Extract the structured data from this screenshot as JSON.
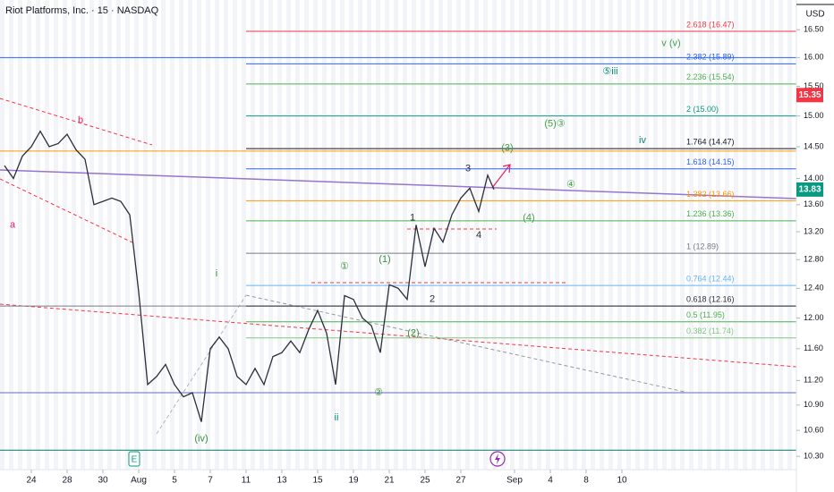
{
  "chart_data": {
    "type": "line",
    "title": "Riot Platforms, Inc. · 15 · NASDAQ",
    "currency": "USD",
    "log_scale": true,
    "grid": false,
    "color": "#2a2e39",
    "x": [
      -1.5,
      -1,
      -0.5,
      0,
      0.5,
      1,
      1.5,
      2,
      2.5,
      3,
      3.5,
      4,
      4.5,
      5,
      5.5,
      6,
      6.5,
      7,
      7.5,
      8,
      8.5,
      9,
      9.5,
      10,
      10.5,
      11,
      11.5,
      12,
      12.5,
      13,
      13.5,
      14,
      14.5,
      15,
      15.5,
      16,
      16.5,
      17,
      17.5,
      18,
      18.5,
      19,
      19.5,
      20,
      20.5,
      21,
      21.5,
      22,
      22.5,
      23,
      23.5,
      24,
      24.5,
      25,
      25.5,
      25.85
    ],
    "values": [
      14.2,
      14.0,
      14.35,
      14.5,
      14.75,
      14.5,
      14.55,
      14.7,
      14.45,
      14.3,
      13.6,
      13.65,
      13.7,
      13.65,
      13.45,
      12.35,
      11.15,
      11.25,
      11.4,
      11.15,
      11.0,
      11.05,
      10.7,
      11.6,
      11.75,
      11.6,
      11.25,
      11.15,
      11.35,
      11.15,
      11.5,
      11.55,
      11.7,
      11.55,
      11.85,
      12.1,
      11.8,
      11.15,
      12.3,
      12.25,
      12.0,
      11.9,
      11.55,
      12.45,
      12.4,
      12.25,
      13.3,
      12.7,
      13.25,
      13.05,
      13.45,
      13.7,
      13.85,
      13.5,
      14.05,
      13.83
    ],
    "xlim": [
      -1.75,
      42.75
    ],
    "xticks": [
      {
        "value": 0,
        "label": "24"
      },
      {
        "value": 2,
        "label": "28"
      },
      {
        "value": 4,
        "label": "30"
      },
      {
        "value": 6,
        "label": "Aug"
      },
      {
        "value": 8,
        "label": "5"
      },
      {
        "value": 10,
        "label": "7"
      },
      {
        "value": 12,
        "label": "11"
      },
      {
        "value": 14,
        "label": "13"
      },
      {
        "value": 16,
        "label": "15"
      },
      {
        "value": 18,
        "label": "19"
      },
      {
        "value": 20,
        "label": "21"
      },
      {
        "value": 22,
        "label": "25"
      },
      {
        "value": 24,
        "label": "27"
      },
      {
        "value": 27,
        "label": "Sep"
      },
      {
        "value": 29,
        "label": "4"
      },
      {
        "value": 31,
        "label": "8"
      },
      {
        "value": 33,
        "label": "10"
      }
    ],
    "ylim": [
      10.15,
      17.05
    ],
    "yticks": [
      {
        "value": 16.5,
        "label": "16.50"
      },
      {
        "value": 16,
        "label": "16.00"
      },
      {
        "value": 15.5,
        "label": "15.50"
      },
      {
        "value": 15,
        "label": "15.00"
      },
      {
        "value": 14.5,
        "label": "14.50"
      },
      {
        "value": 14,
        "label": "14.00"
      },
      {
        "value": 13.6,
        "label": "13.60"
      },
      {
        "value": 13.2,
        "label": "13.20"
      },
      {
        "value": 12.8,
        "label": "12.80"
      },
      {
        "value": 12.4,
        "label": "12.40"
      },
      {
        "value": 12,
        "label": "12.00"
      },
      {
        "value": 11.6,
        "label": "11.60"
      },
      {
        "value": 11.2,
        "label": "11.20"
      },
      {
        "value": 10.9,
        "label": "10.90"
      },
      {
        "value": 10.6,
        "label": "10.60"
      },
      {
        "value": 10.3,
        "label": "10.30"
      }
    ],
    "fib_levels": [
      {
        "label": "2.618 (16.47)",
        "value": 16.47,
        "color": "#f23645"
      },
      {
        "label": "2.382 (15.89)",
        "value": 15.89,
        "color": "#2962ff"
      },
      {
        "label": "2.236 (15.54)",
        "value": 15.54,
        "color": "#4caf50"
      },
      {
        "label": "2 (15.00)",
        "value": 15.0,
        "color": "#089981"
      },
      {
        "label": "1.764 (14.47)",
        "value": 14.47,
        "color": "#131722"
      },
      {
        "label": "1.618 (14.15)",
        "value": 14.15,
        "color": "#2962ff"
      },
      {
        "label": "1.382 (13.66)",
        "value": 13.66,
        "color": "#ff9800"
      },
      {
        "label": "1.236 (13.36)",
        "value": 13.36,
        "color": "#4caf50"
      },
      {
        "label": "1 (12.89)",
        "value": 12.89,
        "color": "#787b86"
      },
      {
        "label": "0.764 (12.44)",
        "value": 12.44,
        "color": "#64b5f6"
      },
      {
        "label": "0.618 (12.16)",
        "value": 12.16,
        "color": "#2a2e39"
      },
      {
        "label": "0.5 (11.95)",
        "value": 11.95,
        "color": "#4caf50"
      },
      {
        "label": "0.382 (11.74)",
        "value": 11.74,
        "color": "#81c784"
      }
    ],
    "hlines": [
      {
        "value": 16.0,
        "color": "#2962ff"
      },
      {
        "value": 14.43,
        "color": "#ff9800"
      },
      {
        "value": 12.16,
        "color": "#787b86"
      },
      {
        "value": 11.05,
        "color": "#5c6bc0"
      },
      {
        "value": 10.37,
        "color": "#00796b"
      }
    ],
    "price_tags": [
      {
        "value": 15.35,
        "color": "#f23645"
      },
      {
        "value": 13.83,
        "color": "#089981"
      }
    ],
    "annotations": [
      {
        "text": "b",
        "x": 2.75,
        "y": 14.93,
        "color": "#e91e63"
      },
      {
        "text": "a",
        "x": -1.05,
        "y": 13.3,
        "color": "#e91e63"
      },
      {
        "text": "i",
        "x": 10.35,
        "y": 12.6,
        "color": "#388e3c"
      },
      {
        "text": "(iv)",
        "x": 9.5,
        "y": 10.5,
        "color": "#388e3c"
      },
      {
        "text": "ii",
        "x": 17.05,
        "y": 10.75,
        "color": "#00897b"
      },
      {
        "text": "iv",
        "x": 34.15,
        "y": 14.6,
        "color": "#00897b"
      },
      {
        "text": "v (v)",
        "x": 35.75,
        "y": 16.25,
        "color": "#43a047"
      },
      {
        "text": "⑤iii",
        "x": 32.35,
        "y": 15.75,
        "color": "#00897b"
      },
      {
        "text": "(5)③",
        "x": 29.25,
        "y": 14.87,
        "color": "#43a047"
      },
      {
        "text": "①",
        "x": 17.5,
        "y": 12.7,
        "color": "#388e3c"
      },
      {
        "text": "(1)",
        "x": 19.75,
        "y": 12.8,
        "color": "#388e3c"
      },
      {
        "text": "②",
        "x": 19.4,
        "y": 11.05,
        "color": "#388e3c"
      },
      {
        "text": "(2)",
        "x": 21.35,
        "y": 11.8,
        "color": "#388e3c"
      },
      {
        "text": "3",
        "x": 24.4,
        "y": 14.15,
        "color": "#2a2e39"
      },
      {
        "text": "1",
        "x": 21.3,
        "y": 13.4,
        "color": "#2a2e39"
      },
      {
        "text": "4",
        "x": 25,
        "y": 13.15,
        "color": "#2a2e39"
      },
      {
        "text": "2",
        "x": 22.4,
        "y": 12.25,
        "color": "#2a2e39"
      },
      {
        "text": "④",
        "x": 30.15,
        "y": 13.9,
        "color": "#43a047"
      },
      {
        "text": "(4)",
        "x": 27.8,
        "y": 13.4,
        "color": "#43a047"
      },
      {
        "text": "(3)",
        "x": 26.6,
        "y": 14.48,
        "color": "#43a047"
      }
    ],
    "earnings_marker": {
      "text": "E",
      "x": 5.75
    }
  }
}
